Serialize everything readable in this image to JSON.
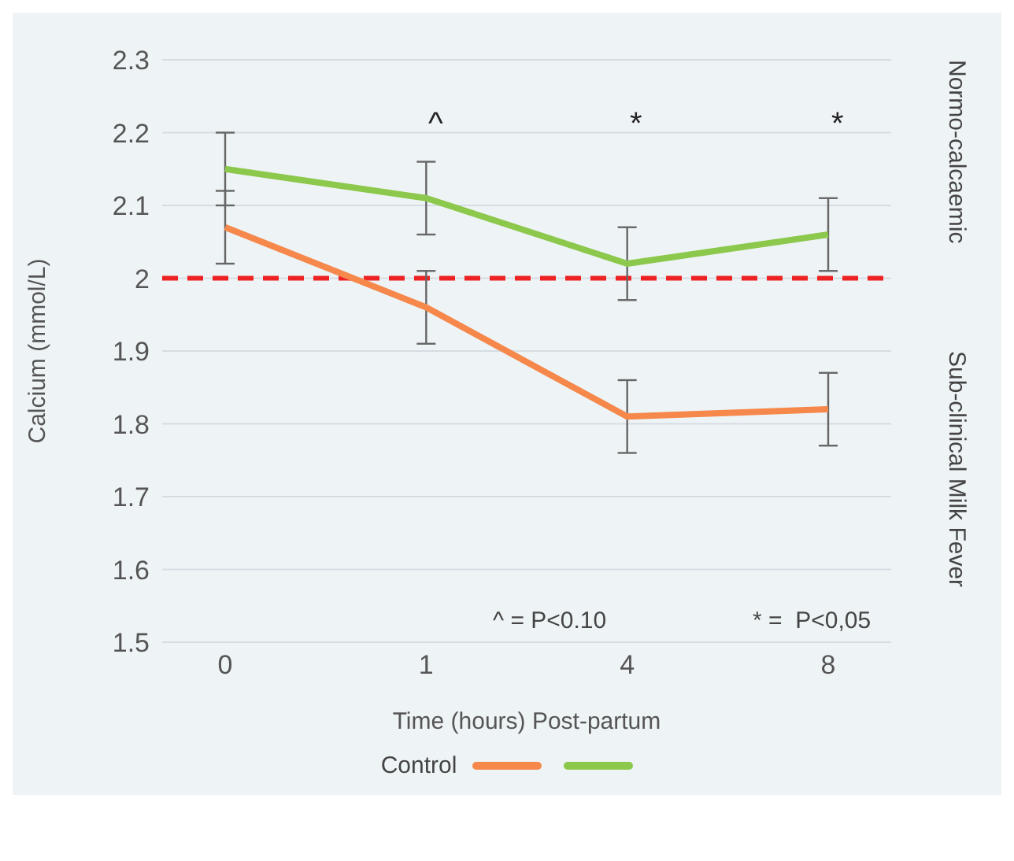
{
  "chart_data": {
    "type": "line",
    "xlabel": "Time (hours) Post-partum",
    "ylabel": "Calcium (mmol/L)",
    "categories": [
      "0",
      "1",
      "4",
      "8"
    ],
    "series": [
      {
        "name": "Control",
        "color": "#f5884a",
        "values": [
          2.07,
          1.96,
          1.81,
          1.82
        ],
        "errors": [
          0.05,
          0.05,
          0.05,
          0.05
        ]
      },
      {
        "color": "#8cc84b",
        "values": [
          2.15,
          2.11,
          2.02,
          2.06
        ],
        "errors": [
          0.05,
          0.05,
          0.05,
          0.05
        ]
      }
    ],
    "ylim": [
      1.5,
      2.3
    ],
    "yticks": [
      1.5,
      1.6,
      1.7,
      1.8,
      1.9,
      2,
      2.1,
      2.2,
      2.3
    ],
    "grid": "y",
    "legend": "bottom",
    "marker": "none",
    "line_style": "solid",
    "ref_lines": [
      {
        "axis": "y",
        "value": 2,
        "color": "#ee2222",
        "line_style": "dashed"
      }
    ],
    "annotations": [
      "^",
      "*",
      "*",
      "^ = P<0.10",
      "* =  P<0,05",
      "Normo-calcaemic",
      "Sub-clinical Milk Fever"
    ]
  }
}
